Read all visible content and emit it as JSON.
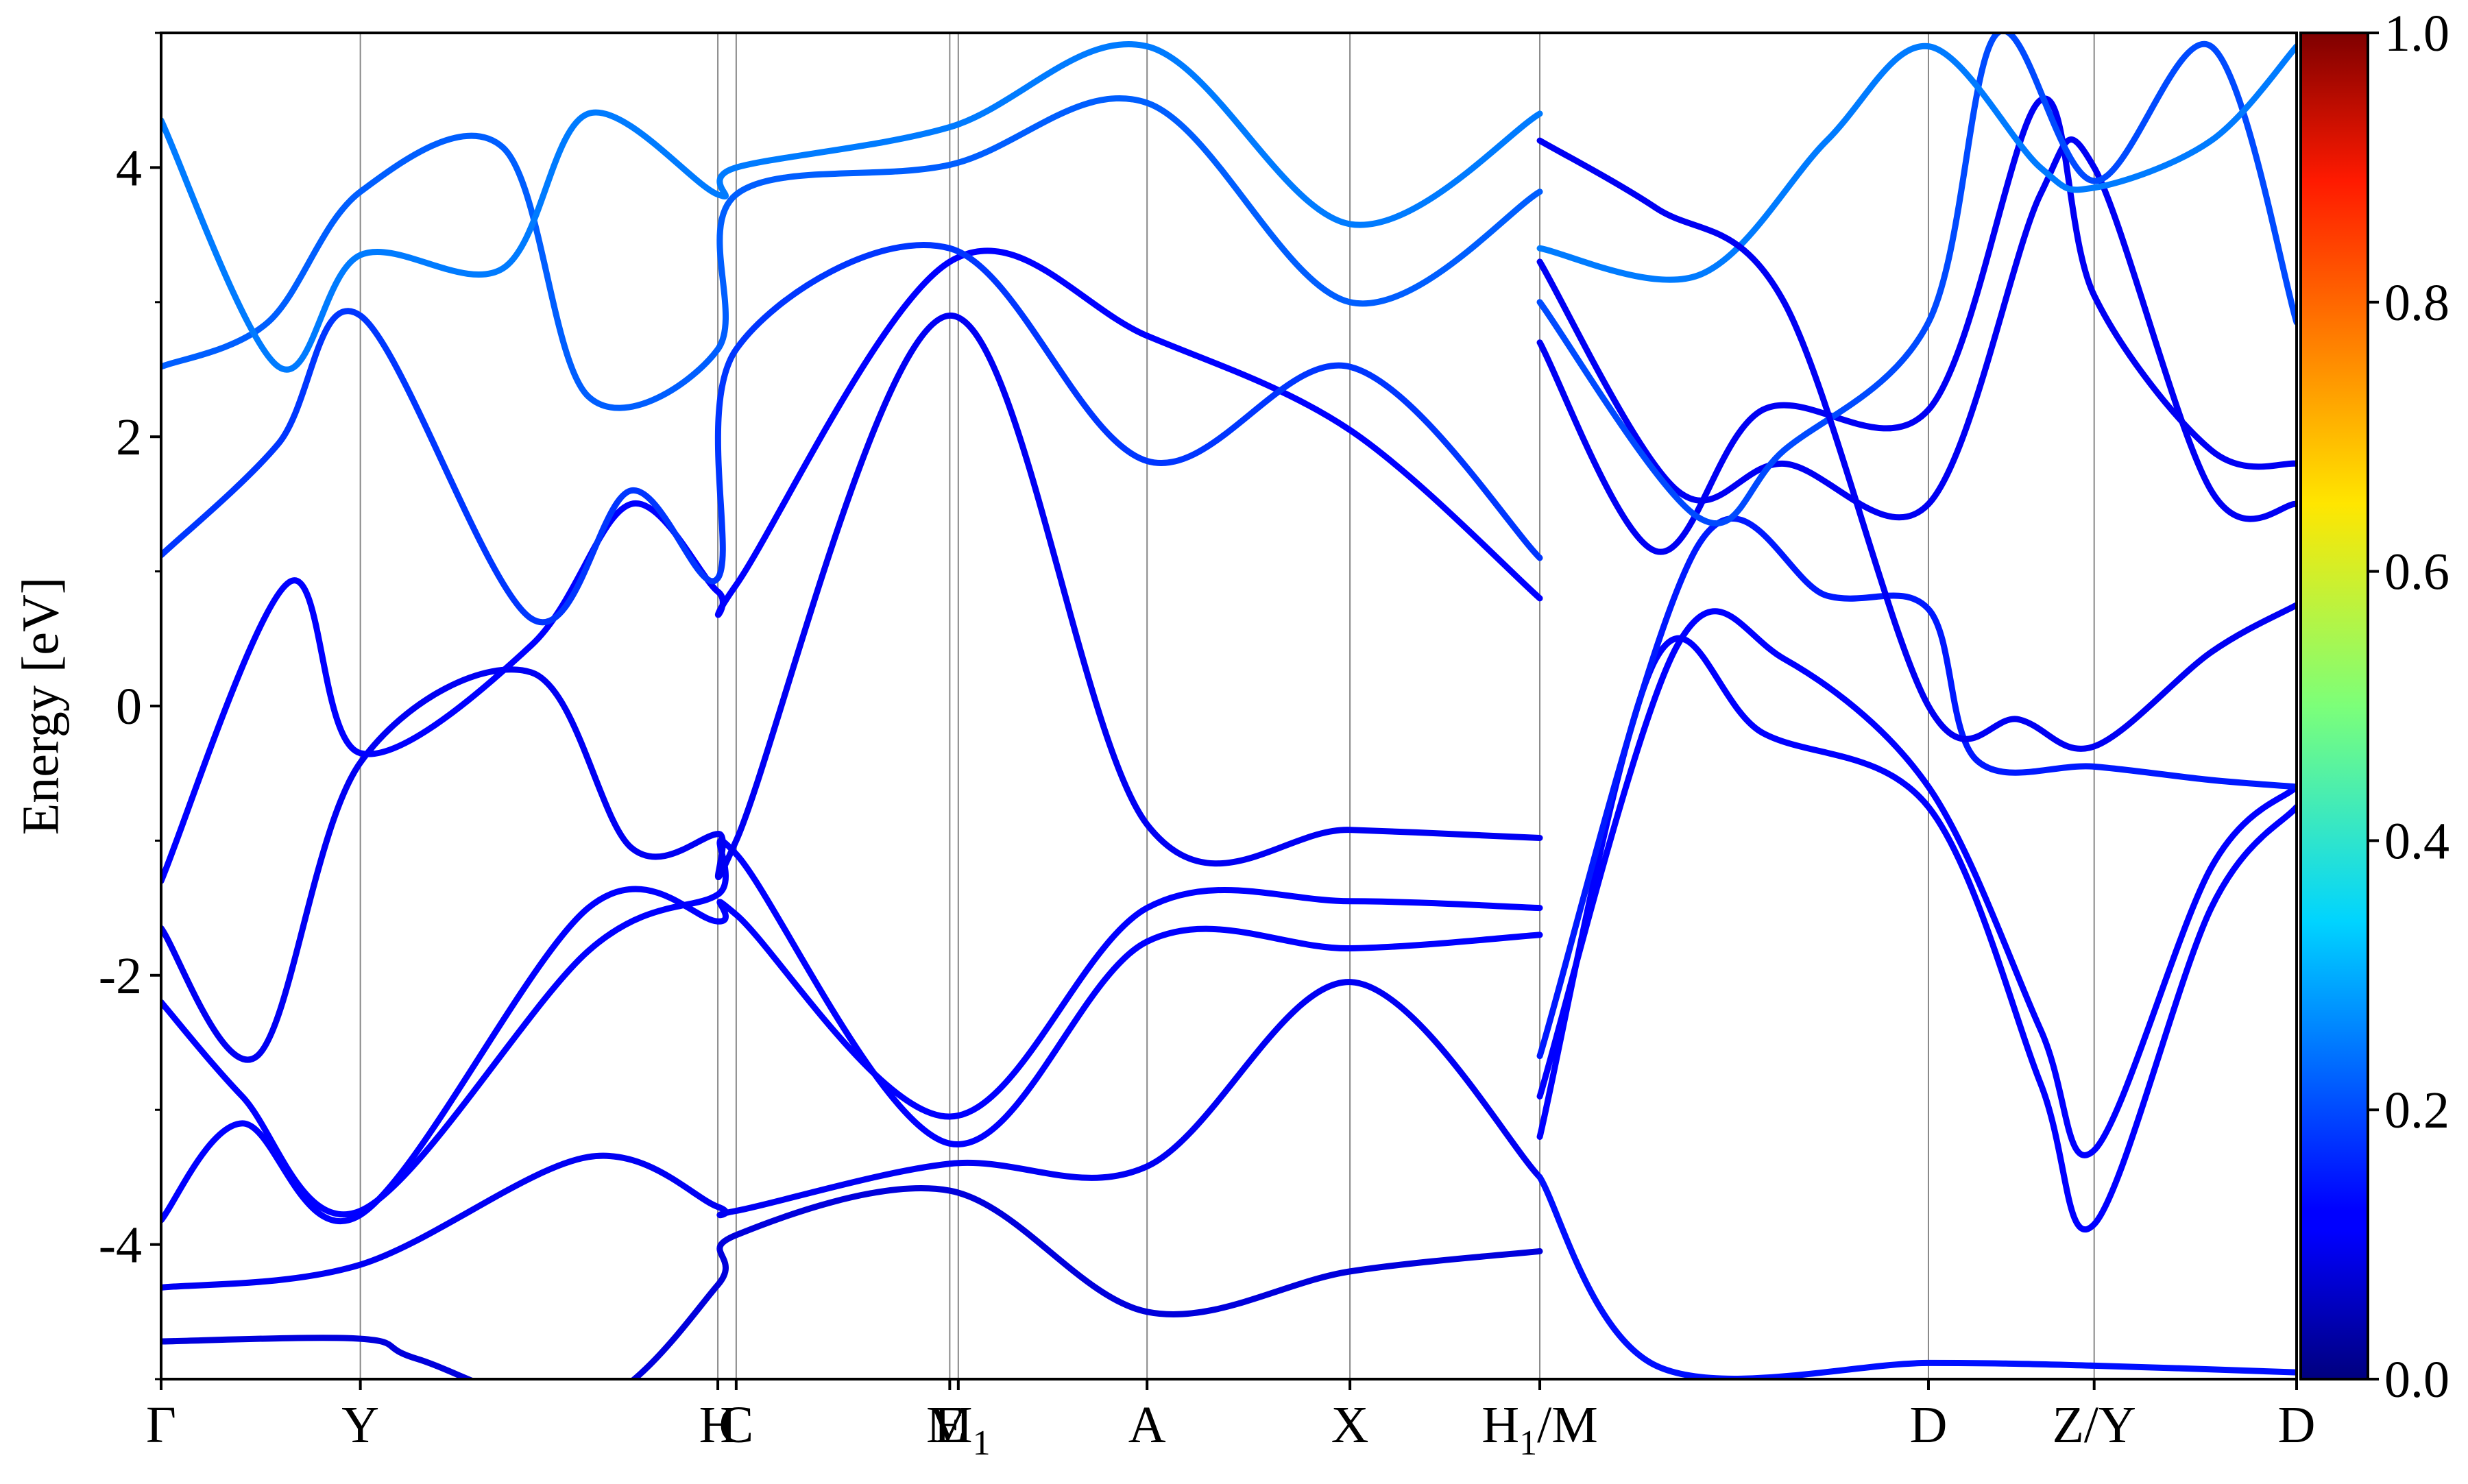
{
  "chart_data": {
    "type": "line",
    "title": "",
    "xlabel": "",
    "ylabel": "Energy [eV]",
    "ylim": [
      -5,
      5
    ],
    "yticks": [
      -4,
      -2,
      0,
      2,
      4
    ],
    "ytick_labels": [
      "-4",
      "-2",
      "0",
      "2",
      "4"
    ],
    "kpath": [
      {
        "label": "Γ",
        "k": 0.0
      },
      {
        "label": "Y",
        "k": 0.0933
      },
      {
        "label": "H",
        "k": 0.2607
      },
      {
        "label": "C",
        "k": 0.2693
      },
      {
        "label": "E",
        "k": 0.3693
      },
      {
        "label": "M",
        "k": 0.3733
      },
      {
        "label": "A",
        "k": 0.4617
      },
      {
        "label": "X",
        "k": 0.5567
      },
      {
        "label": "H/M",
        "k": 0.6456
      },
      {
        "label": "D",
        "k": 0.8276
      },
      {
        "label": "Z/Y",
        "k": 0.9052
      },
      {
        "label": "D",
        "k": 1.0
      }
    ],
    "tick_display": [
      "Γ",
      "Y",
      "H",
      "C",
      "E",
      "M",
      "A",
      "X",
      "H/M",
      "D",
      "Z/Y",
      "D"
    ],
    "colorbar": {
      "min": 0.0,
      "max": 1.0,
      "ticks": [
        "0.0",
        "0.2",
        "0.4",
        "0.6",
        "0.8",
        "1.0"
      ],
      "colormap": "jet"
    },
    "grid": false,
    "series": [
      {
        "weight": 0.08,
        "points": [
          [
            0,
            -4.72
          ],
          [
            0.0933,
            -4.7
          ],
          [
            0.12,
            -4.85
          ],
          [
            0.2,
            -5.2
          ],
          [
            0.2607,
            -4.3
          ],
          [
            0.2693,
            -3.93
          ],
          [
            0.3693,
            -3.6
          ],
          [
            0.4617,
            -4.5
          ],
          [
            0.5567,
            -4.2
          ],
          [
            0.6456,
            -4.05
          ]
        ]
      },
      {
        "weight": 0.1,
        "points": [
          [
            0,
            -4.32
          ],
          [
            0.0933,
            -4.15
          ],
          [
            0.2,
            -3.35
          ],
          [
            0.2607,
            -3.72
          ],
          [
            0.2693,
            -3.75
          ],
          [
            0.3693,
            -3.4
          ],
          [
            0.4617,
            -3.42
          ],
          [
            0.5567,
            -2.05
          ],
          [
            0.6456,
            -3.5
          ]
        ]
      },
      {
        "weight": 0.12,
        "points": [
          [
            0,
            -3.82
          ],
          [
            0.038,
            -3.1
          ],
          [
            0.0933,
            -3.78
          ],
          [
            0.2,
            -1.5
          ],
          [
            0.2607,
            -1.6
          ],
          [
            0.2693,
            -1.55
          ],
          [
            0.3693,
            -3.05
          ],
          [
            0.4617,
            -1.5
          ],
          [
            0.5567,
            -1.45
          ],
          [
            0.6456,
            -1.5
          ]
        ]
      },
      {
        "weight": 0.12,
        "points": [
          [
            0,
            -2.2
          ],
          [
            0.038,
            -2.9
          ],
          [
            0.0933,
            -3.75
          ],
          [
            0.2,
            -1.82
          ],
          [
            0.2607,
            -1.4
          ],
          [
            0.2693,
            -1.1
          ],
          [
            0.3693,
            -3.25
          ],
          [
            0.4617,
            -1.75
          ],
          [
            0.5567,
            -1.8
          ],
          [
            0.6456,
            -1.7
          ]
        ]
      },
      {
        "weight": 0.1,
        "points": [
          [
            0,
            -1.65
          ],
          [
            0.045,
            -2.6
          ],
          [
            0.0933,
            -0.42
          ],
          [
            0.1733,
            0.25
          ],
          [
            0.22,
            -1.05
          ],
          [
            0.2607,
            -0.95
          ],
          [
            0.2693,
            -1.0
          ],
          [
            0.3693,
            2.9
          ],
          [
            0.4617,
            -0.88
          ],
          [
            0.5567,
            -0.92
          ],
          [
            0.6456,
            -0.98
          ]
        ]
      },
      {
        "weight": 0.12,
        "points": [
          [
            0,
            -1.3
          ],
          [
            0.06,
            0.92
          ],
          [
            0.0933,
            -0.35
          ],
          [
            0.1733,
            0.45
          ],
          [
            0.22,
            1.5
          ],
          [
            0.2607,
            0.85
          ],
          [
            0.2693,
            0.9
          ],
          [
            0.3693,
            3.3
          ],
          [
            0.4617,
            2.75
          ],
          [
            0.5567,
            2.05
          ],
          [
            0.6456,
            0.8
          ]
        ]
      },
      {
        "weight": 0.18,
        "points": [
          [
            0,
            1.12
          ],
          [
            0.055,
            1.95
          ],
          [
            0.0933,
            2.9
          ],
          [
            0.1733,
            0.65
          ],
          [
            0.22,
            1.6
          ],
          [
            0.2607,
            0.95
          ],
          [
            0.2693,
            2.65
          ],
          [
            0.3693,
            3.4
          ],
          [
            0.4617,
            1.82
          ],
          [
            0.5567,
            2.52
          ],
          [
            0.6456,
            1.1
          ]
        ]
      },
      {
        "weight": 0.22,
        "points": [
          [
            0,
            2.52
          ],
          [
            0.05,
            2.85
          ],
          [
            0.0933,
            3.82
          ],
          [
            0.16,
            4.15
          ],
          [
            0.2,
            2.3
          ],
          [
            0.2607,
            2.65
          ],
          [
            0.2693,
            3.8
          ],
          [
            0.3693,
            4.02
          ],
          [
            0.4617,
            4.48
          ],
          [
            0.5567,
            3.0
          ],
          [
            0.6456,
            3.82
          ]
        ]
      },
      {
        "weight": 0.25,
        "points": [
          [
            0,
            4.35
          ],
          [
            0.055,
            2.52
          ],
          [
            0.0933,
            3.35
          ],
          [
            0.16,
            3.25
          ],
          [
            0.2,
            4.4
          ],
          [
            0.2607,
            3.8
          ],
          [
            0.2693,
            4.0
          ],
          [
            0.3693,
            4.3
          ],
          [
            0.4617,
            4.9
          ],
          [
            0.5567,
            3.58
          ],
          [
            0.6456,
            4.4
          ]
        ]
      },
      {
        "weight": 0.12,
        "points": [
          [
            0.6456,
            -3.2
          ],
          [
            0.7,
            0.35
          ],
          [
            0.75,
            -0.2
          ],
          [
            0.8276,
            -0.75
          ],
          [
            0.88,
            -2.8
          ],
          [
            0.9052,
            -3.85
          ],
          [
            0.96,
            -1.5
          ],
          [
            1.0,
            -0.75
          ]
        ]
      },
      {
        "weight": 0.12,
        "points": [
          [
            0.6456,
            -2.9
          ],
          [
            0.71,
            0.45
          ],
          [
            0.76,
            0.35
          ],
          [
            0.8276,
            -0.6
          ],
          [
            0.88,
            -2.4
          ],
          [
            0.9052,
            -3.3
          ],
          [
            0.96,
            -1.2
          ],
          [
            1.0,
            -0.6
          ]
        ]
      },
      {
        "weight": 0.15,
        "points": [
          [
            0.6456,
            -2.6
          ],
          [
            0.72,
            1.2
          ],
          [
            0.78,
            0.82
          ],
          [
            0.8276,
            0.72
          ],
          [
            0.85,
            -0.4
          ],
          [
            0.9052,
            -0.45
          ],
          [
            0.96,
            -0.55
          ],
          [
            1.0,
            -0.6
          ]
        ]
      },
      {
        "weight": 0.14,
        "points": [
          [
            0.6456,
            -3.5
          ],
          [
            0.7,
            -4.9
          ],
          [
            0.8276,
            -4.88
          ],
          [
            0.9052,
            -4.9
          ],
          [
            1.0,
            -4.95
          ]
        ]
      },
      {
        "weight": 0.1,
        "points": [
          [
            0.6456,
            2.7
          ],
          [
            0.7,
            1.15
          ],
          [
            0.75,
            2.2
          ],
          [
            0.8276,
            2.2
          ],
          [
            0.88,
            4.5
          ],
          [
            0.9052,
            3.05
          ],
          [
            0.96,
            1.9
          ],
          [
            1.0,
            1.8
          ]
        ]
      },
      {
        "weight": 0.1,
        "points": [
          [
            0.6456,
            3.3
          ],
          [
            0.71,
            1.6
          ],
          [
            0.76,
            1.8
          ],
          [
            0.8276,
            1.5
          ],
          [
            0.88,
            3.8
          ],
          [
            0.9052,
            4.0
          ],
          [
            0.96,
            1.6
          ],
          [
            1.0,
            1.5
          ]
        ]
      },
      {
        "weight": 0.2,
        "points": [
          [
            0.6456,
            3.0
          ],
          [
            0.72,
            1.4
          ],
          [
            0.76,
            1.9
          ],
          [
            0.8276,
            2.85
          ],
          [
            0.86,
            5.0
          ],
          [
            0.9052,
            3.9
          ],
          [
            0.96,
            4.9
          ],
          [
            1.0,
            2.85
          ]
        ]
      },
      {
        "weight": 0.25,
        "points": [
          [
            0.6456,
            3.4
          ],
          [
            0.72,
            3.2
          ],
          [
            0.78,
            4.2
          ],
          [
            0.8276,
            4.9
          ],
          [
            0.88,
            4.0
          ],
          [
            0.9052,
            3.85
          ],
          [
            0.96,
            4.2
          ],
          [
            1.0,
            4.9
          ]
        ]
      },
      {
        "weight": 0.1,
        "points": [
          [
            0.6456,
            4.2
          ],
          [
            0.7,
            3.7
          ],
          [
            0.76,
            3.0
          ],
          [
            0.8276,
            0.0
          ],
          [
            0.87,
            -0.1
          ],
          [
            0.9052,
            -0.3
          ],
          [
            0.96,
            0.4
          ],
          [
            1.0,
            0.75
          ]
        ]
      }
    ]
  }
}
